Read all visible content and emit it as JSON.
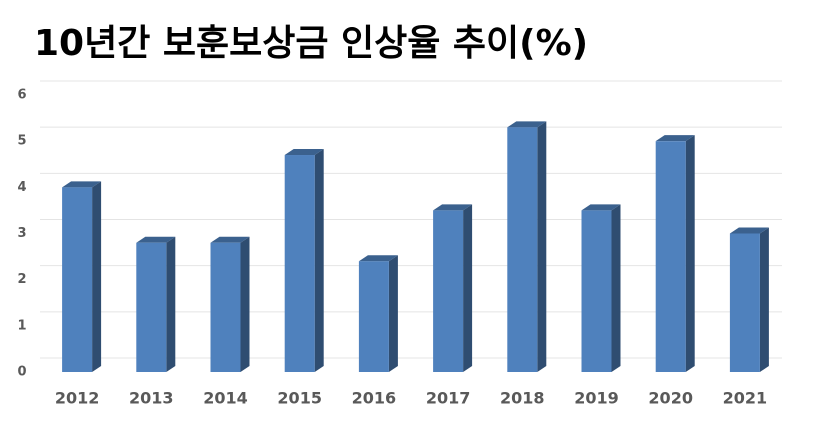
{
  "chart_data": {
    "type": "bar3d",
    "title": "10년간 보훈보상금 인상율 추이(%)",
    "categories": [
      "2012",
      "2013",
      "2014",
      "2015",
      "2016",
      "2017",
      "2018",
      "2019",
      "2020",
      "2021"
    ],
    "values": [
      4.0,
      2.8,
      2.8,
      4.7,
      2.4,
      3.5,
      5.3,
      3.5,
      5.0,
      3.0
    ],
    "color": "#4f81bd",
    "ylim": [
      0,
      6
    ],
    "yticks": [
      0,
      1,
      2,
      3,
      4,
      5,
      6
    ],
    "grid": true
  }
}
